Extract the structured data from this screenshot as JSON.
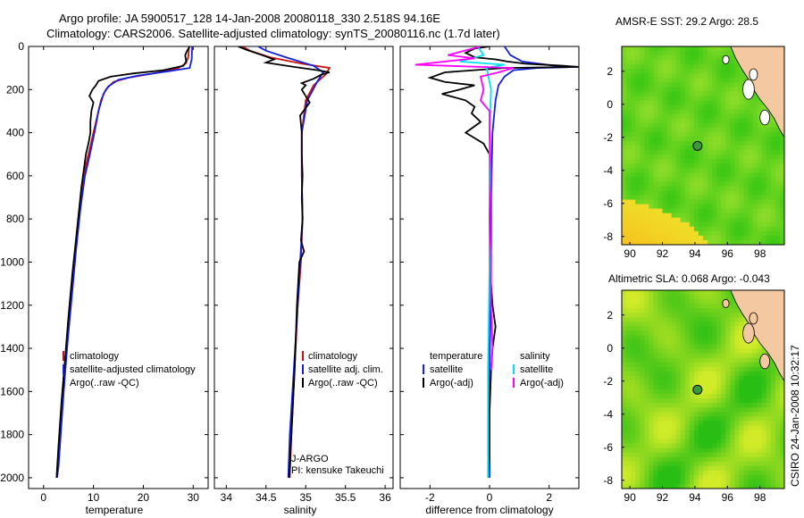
{
  "header": {
    "line1": "Argo profile: JA 5900517_128 14-Jan-2008 20080118_330 2.518S 94.16E",
    "line2": "Climatology: CARS2006. Satellite-adjusted climatology: synTS_20080116.nc (1.7d later)"
  },
  "side_text": "CSIRO 24-Jan-2008 10:32:17",
  "colors": {
    "clim": "#d01010",
    "sat": "#1020e0",
    "argo": "#000000",
    "sat_sal": "#00e0f0",
    "argo_sal": "#ff00ff"
  },
  "chart_data": [
    {
      "type": "line",
      "id": "temperature",
      "xlabel": "temperature",
      "xlim": [
        -3,
        33
      ],
      "ylim": [
        0,
        2050
      ],
      "y_reversed": true,
      "xticks": [
        "0",
        "10",
        "20",
        "30"
      ],
      "xtick_values": [
        0,
        10,
        20,
        30
      ],
      "yticks": [
        "0",
        "200",
        "400",
        "600",
        "800",
        "1000",
        "1200",
        "1400",
        "1600",
        "1800",
        "2000"
      ],
      "ytick_values": [
        0,
        200,
        400,
        600,
        800,
        1000,
        1200,
        1400,
        1600,
        1800,
        2000
      ],
      "legend": [
        "climatology",
        "satellite-adjusted climatology",
        "Argo(..raw -QC)"
      ],
      "series": [
        {
          "name": "climatology",
          "color_key": "clim",
          "points": [
            [
              29.2,
              0
            ],
            [
              29.0,
              50
            ],
            [
              28.5,
              80
            ],
            [
              27,
              100
            ],
            [
              22,
              125
            ],
            [
              17,
              145
            ],
            [
              14,
              165
            ],
            [
              12.5,
              200
            ],
            [
              11.5,
              250
            ],
            [
              10.5,
              350
            ],
            [
              9.5,
              450
            ],
            [
              8.5,
              550
            ],
            [
              7.6,
              700
            ],
            [
              6.6,
              900
            ],
            [
              5.8,
              1100
            ],
            [
              5.0,
              1300
            ],
            [
              4.3,
              1500
            ],
            [
              3.7,
              1700
            ],
            [
              3.1,
              1900
            ],
            [
              2.7,
              2000
            ]
          ]
        },
        {
          "name": "satellite-adjusted climatology",
          "color_key": "sat",
          "points": [
            [
              29.8,
              0
            ],
            [
              29.7,
              60
            ],
            [
              29.3,
              100
            ],
            [
              25,
              115
            ],
            [
              19,
              135
            ],
            [
              15,
              155
            ],
            [
              13,
              185
            ],
            [
              12,
              220
            ],
            [
              11,
              300
            ],
            [
              10.2,
              400
            ],
            [
              9.3,
              500
            ],
            [
              8.3,
              600
            ],
            [
              7.4,
              750
            ],
            [
              6.5,
              950
            ],
            [
              5.7,
              1150
            ],
            [
              4.9,
              1350
            ],
            [
              4.2,
              1550
            ],
            [
              3.6,
              1750
            ],
            [
              3.0,
              1950
            ],
            [
              2.7,
              2000
            ]
          ]
        },
        {
          "name": "Argo(..raw -QC)",
          "color_key": "argo",
          "points": [
            [
              29.3,
              0
            ],
            [
              28.8,
              20
            ],
            [
              28.4,
              40
            ],
            [
              28.6,
              70
            ],
            [
              28,
              90
            ],
            [
              24,
              110
            ],
            [
              18,
              125
            ],
            [
              13.5,
              140
            ],
            [
              11,
              160
            ],
            [
              10.5,
              180
            ],
            [
              9.8,
              200
            ],
            [
              9.2,
              230
            ],
            [
              10,
              260
            ],
            [
              9.6,
              300
            ],
            [
              9.4,
              350
            ],
            [
              9.4,
              400
            ],
            [
              9.0,
              450
            ],
            [
              8.5,
              500
            ],
            [
              7.6,
              650
            ],
            [
              6.7,
              850
            ],
            [
              5.8,
              1050
            ],
            [
              5.0,
              1250
            ],
            [
              4.3,
              1450
            ],
            [
              3.6,
              1650
            ],
            [
              3.0,
              1850
            ],
            [
              2.6,
              2000
            ]
          ]
        }
      ]
    },
    {
      "type": "line",
      "id": "salinity",
      "xlabel": "salinity",
      "xlim": [
        33.85,
        36.1
      ],
      "ylim": [
        0,
        2050
      ],
      "y_reversed": true,
      "xticks": [
        "34",
        "34.5",
        "35",
        "35.5",
        "36"
      ],
      "xtick_values": [
        34,
        34.5,
        35,
        35.5,
        36
      ],
      "legend": [
        "climatology",
        "satellite adj. clim.",
        "Argo(..raw -QC)"
      ],
      "annotation": [
        "J-ARGO",
        "PI: kensuke Takeuchi"
      ],
      "series": [
        {
          "name": "climatology",
          "color_key": "clim",
          "points": [
            [
              34.2,
              0
            ],
            [
              34.3,
              20
            ],
            [
              34.55,
              50
            ],
            [
              34.95,
              80
            ],
            [
              35.3,
              100
            ],
            [
              35.25,
              130
            ],
            [
              35.1,
              180
            ],
            [
              35.0,
              250
            ],
            [
              34.95,
              400
            ],
            [
              34.95,
              600
            ],
            [
              34.96,
              800
            ],
            [
              34.94,
              1000
            ],
            [
              34.9,
              1200
            ],
            [
              34.86,
              1500
            ],
            [
              34.82,
              1800
            ],
            [
              34.8,
              2000
            ]
          ]
        },
        {
          "name": "satellite adj. clim.",
          "color_key": "sat",
          "points": [
            [
              34.4,
              0
            ],
            [
              34.5,
              20
            ],
            [
              34.75,
              50
            ],
            [
              35.1,
              90
            ],
            [
              35.22,
              120
            ],
            [
              35.15,
              160
            ],
            [
              35.02,
              250
            ],
            [
              34.95,
              400
            ],
            [
              34.95,
              600
            ],
            [
              34.96,
              800
            ],
            [
              34.93,
              1000
            ],
            [
              34.9,
              1200
            ],
            [
              34.85,
              1500
            ],
            [
              34.8,
              1800
            ],
            [
              34.78,
              2000
            ]
          ]
        },
        {
          "name": "Argo(..raw -QC)",
          "color_key": "argo",
          "points": [
            [
              34.15,
              0
            ],
            [
              34.25,
              15
            ],
            [
              34.45,
              40
            ],
            [
              34.6,
              60
            ],
            [
              34.5,
              75
            ],
            [
              34.85,
              95
            ],
            [
              35.15,
              110
            ],
            [
              35.3,
              120
            ],
            [
              35.2,
              130
            ],
            [
              35.1,
              150
            ],
            [
              34.95,
              170
            ],
            [
              35.0,
              180
            ],
            [
              34.95,
              200
            ],
            [
              35.05,
              260
            ],
            [
              34.93,
              320
            ],
            [
              34.95,
              400
            ],
            [
              34.95,
              500
            ],
            [
              34.96,
              600
            ],
            [
              34.95,
              700
            ],
            [
              34.96,
              800
            ],
            [
              34.94,
              900
            ],
            [
              34.98,
              950
            ],
            [
              34.92,
              1000
            ],
            [
              34.89,
              1200
            ],
            [
              34.86,
              1500
            ],
            [
              34.82,
              1800
            ],
            [
              34.79,
              2000
            ]
          ]
        }
      ]
    },
    {
      "type": "line",
      "id": "difference",
      "xlabel": "difference from climatology",
      "xlim": [
        -3,
        3
      ],
      "ylim": [
        0,
        2050
      ],
      "y_reversed": true,
      "xticks": [
        "-2",
        "0",
        "2"
      ],
      "xtick_values": [
        -2,
        0,
        2
      ],
      "legend_left_title": "temperature",
      "legend_left": [
        "satellite",
        "Argo(-adj)"
      ],
      "legend_right_title": "salinity",
      "legend_right": [
        "satellite",
        "Argo(-adj)"
      ],
      "series": [
        {
          "name": "temperature satellite",
          "color_key": "sat",
          "points": [
            [
              0.5,
              0
            ],
            [
              0.7,
              40
            ],
            [
              1.1,
              70
            ],
            [
              2.2,
              90
            ],
            [
              3.0,
              95
            ],
            [
              1.6,
              100
            ],
            [
              0.8,
              110
            ],
            [
              0.5,
              140
            ],
            [
              0.3,
              180
            ],
            [
              0.2,
              250
            ],
            [
              0.1,
              400
            ],
            [
              0.05,
              700
            ],
            [
              0.05,
              1000
            ],
            [
              0.0,
              1500
            ],
            [
              0.0,
              2000
            ]
          ]
        },
        {
          "name": "temperature Argo(-adj)",
          "color_key": "argo",
          "points": [
            [
              0.0,
              0
            ],
            [
              -0.5,
              10
            ],
            [
              -0.8,
              30
            ],
            [
              -0.5,
              50
            ],
            [
              0.2,
              60
            ],
            [
              0.6,
              70
            ],
            [
              1.2,
              80
            ],
            [
              2.5,
              90
            ],
            [
              3.0,
              95
            ],
            [
              0.5,
              100
            ],
            [
              -1.5,
              120
            ],
            [
              -2.0,
              145
            ],
            [
              -1.5,
              165
            ],
            [
              -0.5,
              180
            ],
            [
              -1.0,
              200
            ],
            [
              -1.6,
              220
            ],
            [
              -0.8,
              250
            ],
            [
              -0.5,
              280
            ],
            [
              -0.6,
              310
            ],
            [
              -0.3,
              350
            ],
            [
              -0.8,
              400
            ],
            [
              -0.2,
              450
            ],
            [
              0.0,
              500
            ],
            [
              0.0,
              700
            ],
            [
              0.0,
              1000
            ],
            [
              0.1,
              1200
            ],
            [
              0.2,
              1300
            ],
            [
              0.1,
              1400
            ],
            [
              0.05,
              1500
            ],
            [
              0.0,
              1700
            ],
            [
              0.0,
              1900
            ],
            [
              -0.05,
              2000
            ]
          ]
        },
        {
          "name": "salinity satellite",
          "color_key": "sat_sal",
          "points": [
            [
              -0.4,
              0
            ],
            [
              -0.2,
              40
            ],
            [
              -1.0,
              70
            ],
            [
              0.5,
              85
            ],
            [
              -0.1,
              100
            ],
            [
              0.05,
              200
            ],
            [
              0.0,
              400
            ],
            [
              0.0,
              700
            ],
            [
              0.0,
              1000
            ],
            [
              -0.05,
              1500
            ],
            [
              -0.05,
              2000
            ]
          ]
        },
        {
          "name": "salinity Argo(-adj)",
          "color_key": "argo_sal",
          "points": [
            [
              -0.3,
              0
            ],
            [
              -1.4,
              40
            ],
            [
              -0.5,
              55
            ],
            [
              -2.5,
              85
            ],
            [
              0.8,
              100
            ],
            [
              0.3,
              120
            ],
            [
              -0.3,
              140
            ],
            [
              -0.2,
              200
            ],
            [
              -0.3,
              250
            ],
            [
              0.0,
              300
            ],
            [
              0.0,
              400
            ],
            [
              0.05,
              600
            ],
            [
              0.0,
              800
            ],
            [
              0.05,
              1000
            ],
            [
              0.05,
              1200
            ],
            [
              0.1,
              1400
            ],
            [
              0.05,
              1500
            ]
          ]
        }
      ]
    },
    {
      "type": "heatmap",
      "id": "sst-map",
      "title": "AMSR-E SST: 29.2  Argo: 28.5",
      "xticks": [
        "90",
        "92",
        "94",
        "96",
        "98"
      ],
      "xtick_values": [
        90,
        92,
        94,
        96,
        98
      ],
      "yticks": [
        "2",
        "0",
        "-2",
        "-4",
        "-6",
        "-8"
      ],
      "ytick_values": [
        2,
        0,
        -2,
        -4,
        -6,
        -8
      ],
      "xlim": [
        89.5,
        99.5
      ],
      "ylim": [
        -8.5,
        3.5
      ],
      "float_position": [
        94.16,
        -2.518
      ]
    },
    {
      "type": "heatmap",
      "id": "sla-map",
      "title": "Altimetric SLA: 0.068  Argo: -0.043",
      "xticks": [
        "90",
        "92",
        "94",
        "96",
        "98"
      ],
      "xtick_values": [
        90,
        92,
        94,
        96,
        98
      ],
      "yticks": [
        "2",
        "0",
        "-2",
        "-4",
        "-6",
        "-8"
      ],
      "ytick_values": [
        2,
        0,
        -2,
        -4,
        -6,
        -8
      ],
      "xlim": [
        89.5,
        99.5
      ],
      "ylim": [
        -8.5,
        3.5
      ],
      "float_position": [
        94.16,
        -2.518
      ]
    }
  ]
}
